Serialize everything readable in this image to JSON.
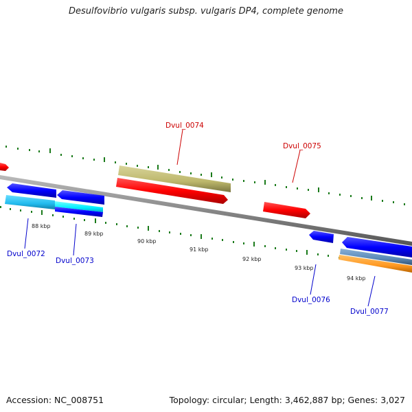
{
  "title": "Desulfovibrio vulgaris subsp. vulgaris DP4, complete genome",
  "footer": {
    "accession": "Accession: NC_008751",
    "summary": "Topology: circular; Length: 3,462,887 bp; Genes: 3,027"
  },
  "ruler_ticks": [
    "88 kbp",
    "89 kbp",
    "90 kbp",
    "91 kbp",
    "92 kbp",
    "93 kbp",
    "94 kbp"
  ],
  "genes": [
    {
      "label": "Dvul_0074",
      "strand": "forward",
      "color": "#ff0000"
    },
    {
      "label": "Dvul_0075",
      "strand": "forward",
      "color": "#ff0000"
    },
    {
      "label": "Dvul_0072",
      "strand": "reverse",
      "color": "#0000ff"
    },
    {
      "label": "Dvul_0073",
      "strand": "reverse",
      "color": "#0000ff"
    },
    {
      "label": "Dvul_0076",
      "strand": "reverse",
      "color": "#0000ff"
    },
    {
      "label": "Dvul_0077",
      "strand": "reverse",
      "color": "#0000ff"
    }
  ],
  "colors": {
    "backbone": "#888888",
    "ticks": "#1a7a1a",
    "forward_gene": "#ff0000",
    "reverse_gene": "#0000ff",
    "forward_label": "#cc0000",
    "reverse_label": "#0000cc",
    "feature_khaki": "#bdb76b",
    "feature_cyan": "#22ccff",
    "feature_steelblue": "#5a8ab8",
    "feature_orange": "#ff9922"
  }
}
